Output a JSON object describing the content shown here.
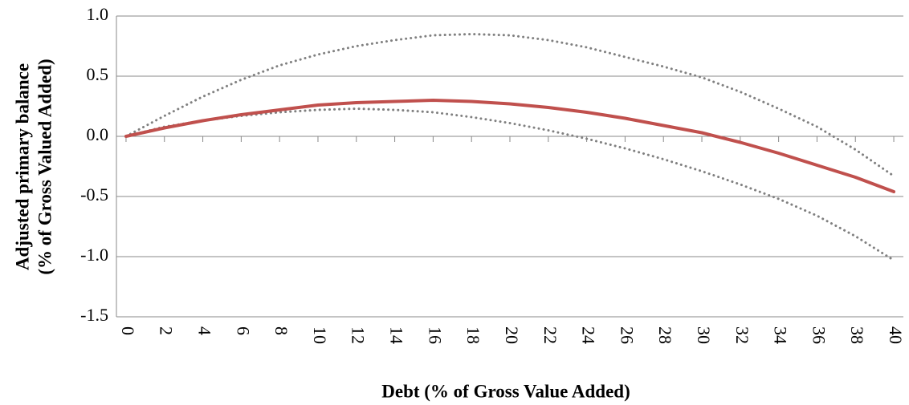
{
  "chart_data": {
    "type": "line",
    "x_label": "Debt (% of Gross Value Added)",
    "y_label": [
      "Adjusted primary balance",
      "(% of Gross Valued Added)"
    ],
    "x": [
      0,
      2,
      4,
      6,
      8,
      10,
      12,
      14,
      16,
      18,
      20,
      22,
      24,
      26,
      28,
      30,
      32,
      34,
      36,
      38,
      40
    ],
    "series": [
      {
        "color": "#808080",
        "dash": "dotted",
        "values": [
          0,
          0.17,
          0.33,
          0.47,
          0.59,
          0.68,
          0.75,
          0.8,
          0.84,
          0.85,
          0.84,
          0.8,
          0.74,
          0.66,
          0.58,
          0.49,
          0.37,
          0.23,
          0.08,
          -0.11,
          -0.33
        ]
      },
      {
        "color": "#808080",
        "dash": "dotted",
        "values": [
          0,
          0.08,
          0.13,
          0.17,
          0.2,
          0.22,
          0.23,
          0.22,
          0.2,
          0.16,
          0.11,
          0.05,
          -0.02,
          -0.1,
          -0.19,
          -0.29,
          -0.4,
          -0.52,
          -0.66,
          -0.83,
          -1.03
        ]
      },
      {
        "color": "#c0504d",
        "dash": "solid",
        "values": [
          0,
          0.07,
          0.13,
          0.18,
          0.22,
          0.26,
          0.28,
          0.29,
          0.3,
          0.29,
          0.27,
          0.24,
          0.2,
          0.15,
          0.09,
          0.03,
          -0.05,
          -0.14,
          -0.24,
          -0.34,
          -0.46
        ]
      }
    ],
    "xlim": [
      -0.5,
      40.5
    ],
    "xticks": [
      0,
      2,
      4,
      6,
      8,
      10,
      12,
      14,
      16,
      18,
      20,
      22,
      24,
      26,
      28,
      30,
      32,
      34,
      36,
      38,
      40
    ],
    "ylim": [
      -1.5,
      1.0
    ],
    "yticks": [
      {
        "value": 1.0,
        "label": "1.0"
      },
      0.5,
      {
        "value": 0,
        "label": "0.0"
      },
      -0.5,
      {
        "value": -1.0,
        "label": "-1.0"
      },
      -1.5
    ],
    "grid": true
  }
}
